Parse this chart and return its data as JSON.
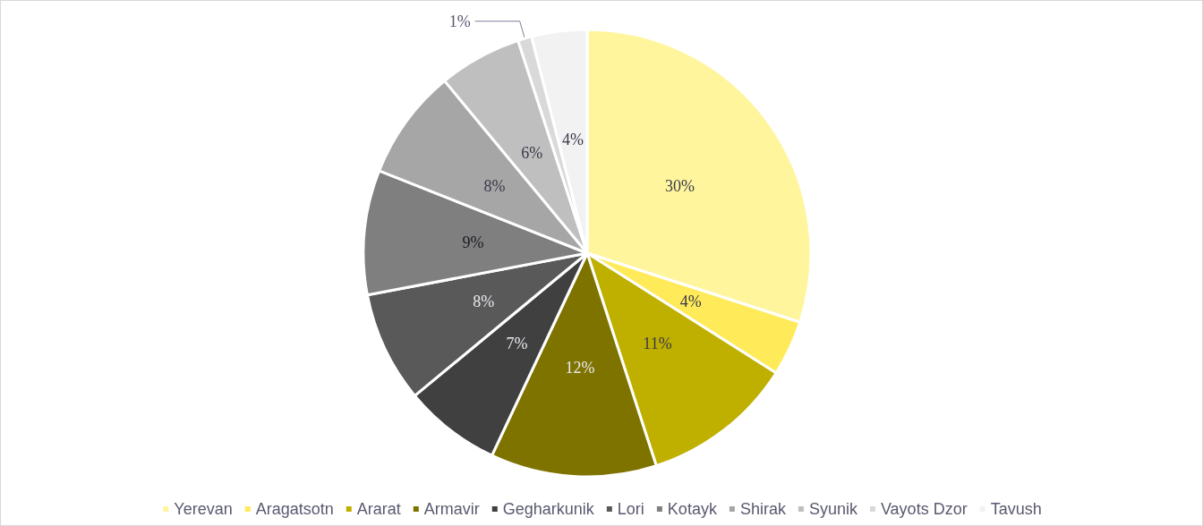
{
  "chart_data": {
    "type": "pie",
    "categories": [
      "Yerevan",
      "Aragatsotn",
      "Ararat",
      "Armavir",
      "Gegharkunik",
      "Lori",
      "Kotayk",
      "Shirak",
      "Syunik",
      "Vayots Dzor",
      "Tavush"
    ],
    "values": [
      30,
      4,
      11,
      12,
      7,
      8,
      9,
      8,
      6,
      1,
      4
    ],
    "colors": [
      "#fff59d",
      "#ffeb5a",
      "#bfb000",
      "#7f7300",
      "#404040",
      "#595959",
      "#7f7f7f",
      "#a6a6a6",
      "#bfbfbf",
      "#d9d9d9",
      "#f2f2f2"
    ],
    "value_labels": [
      "30%",
      "4%",
      "11%",
      "12%",
      "7%",
      "8%",
      "9%",
      "8%",
      "6%",
      "1%",
      "4%"
    ],
    "legend": "bottom"
  }
}
